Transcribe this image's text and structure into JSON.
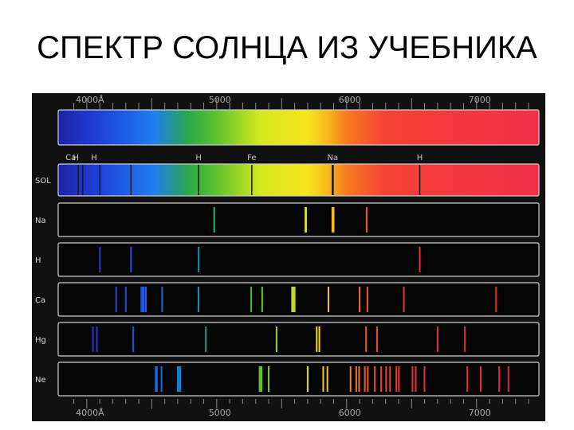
{
  "slide": {
    "title": "СПЕКТР СОЛНЦА ИЗ УЧЕБНИКА"
  },
  "figure": {
    "top_axis_labels": [
      {
        "text": "4000Å",
        "wl": 4000
      },
      {
        "text": "5000",
        "wl": 5000
      },
      {
        "text": "6000",
        "wl": 6000
      },
      {
        "text": "7000",
        "wl": 7000
      }
    ],
    "bottom_axis_labels": [
      {
        "text": "4000Å",
        "wl": 4000
      },
      {
        "text": "5000",
        "wl": 5000
      },
      {
        "text": "6000",
        "wl": 6000
      },
      {
        "text": "7000",
        "wl": 7000
      }
    ],
    "fraunhofer_labels": [
      {
        "text": "H",
        "wl": 4101
      },
      {
        "text": "Ca",
        "wl": 3950
      },
      {
        "text": "H",
        "wl": 3970
      },
      {
        "text": "H",
        "wl": 4861
      },
      {
        "text": "Fe",
        "wl": 5270
      },
      {
        "text": "Na",
        "wl": 5893
      },
      {
        "text": "H",
        "wl": 6563
      }
    ],
    "colors": {
      "background": "#111111",
      "strip_border": "#d0d0d0",
      "strip_fill": "#050505"
    },
    "rows": [
      {
        "label": "",
        "type": "continuous",
        "lines": []
      },
      {
        "label": "SOL",
        "type": "absorption",
        "lines": [
          3934,
          3968,
          4101,
          4340,
          4861,
          5270,
          5890,
          5896,
          6563
        ]
      },
      {
        "label": "Na",
        "type": "emission",
        "lines": [
          4980,
          4982,
          5683,
          5688,
          5890,
          5896,
          5900,
          6154
        ]
      },
      {
        "label": "H",
        "type": "emission",
        "lines": [
          4101,
          4340,
          4861,
          6563
        ]
      },
      {
        "label": "Ca",
        "type": "emission",
        "lines": [
          4226,
          4300,
          4420,
          4430,
          4440,
          4455,
          4580,
          4860,
          5265,
          5350,
          5580,
          5590,
          5600,
          5860,
          6100,
          6160,
          6440,
          7150
        ]
      },
      {
        "label": "Hg",
        "type": "emission",
        "lines": [
          4047,
          4078,
          4358,
          4916,
          5461,
          5770,
          5790,
          6150,
          6234,
          6700,
          6910
        ]
      },
      {
        "label": "Ne",
        "type": "emission",
        "lines": [
          4530,
          4540,
          4575,
          4700,
          4710,
          4720,
          5330,
          5341,
          5345,
          5400,
          5700,
          5820,
          5852,
          6030,
          6074,
          6096,
          6140,
          6163,
          6217,
          6266,
          6304,
          6334,
          6383,
          6402,
          6507,
          6532,
          6599,
          6929,
          7032,
          7174,
          7245
        ]
      }
    ]
  }
}
